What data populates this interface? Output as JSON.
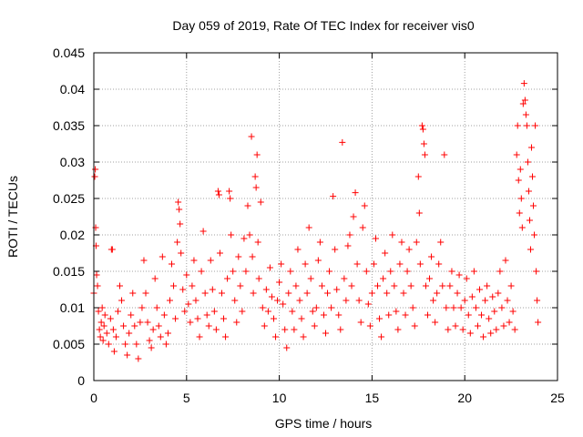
{
  "chart_data": {
    "type": "scatter",
    "title": "Day 059 of 2019, Rate Of TEC Index for receiver vis0",
    "xlabel": "GPS time / hours",
    "ylabel": "ROTI / TECUs",
    "xlim": [
      0,
      25
    ],
    "ylim": [
      0,
      0.045
    ],
    "x_ticks": [
      "0",
      "5",
      "10",
      "15",
      "20",
      "25"
    ],
    "y_ticks": [
      "0",
      "0.005",
      "0.01",
      "0.015",
      "0.02",
      "0.025",
      "0.03",
      "0.035",
      "0.04",
      "0.045"
    ],
    "x_tick_values": [
      0,
      5,
      10,
      15,
      20,
      25
    ],
    "y_tick_values": [
      0,
      0.005,
      0.01,
      0.015,
      0.02,
      0.025,
      0.03,
      0.035,
      0.04,
      0.045
    ],
    "grid": true,
    "marker": "+",
    "series": [
      {
        "name": "ROTI",
        "color": "#ff0000",
        "points": [
          [
            0.0,
            0.012
          ],
          [
            0.05,
            0.028
          ],
          [
            0.08,
            0.029
          ],
          [
            0.1,
            0.021
          ],
          [
            0.12,
            0.0185
          ],
          [
            0.15,
            0.0145
          ],
          [
            0.2,
            0.013
          ],
          [
            0.25,
            0.0095
          ],
          [
            0.3,
            0.007
          ],
          [
            0.35,
            0.006
          ],
          [
            0.4,
            0.008
          ],
          [
            0.45,
            0.01
          ],
          [
            0.5,
            0.0055
          ],
          [
            0.55,
            0.0075
          ],
          [
            0.6,
            0.009
          ],
          [
            0.7,
            0.0065
          ],
          [
            0.8,
            0.005
          ],
          [
            0.9,
            0.0085
          ],
          [
            0.95,
            0.018
          ],
          [
            1.0,
            0.018
          ],
          [
            1.05,
            0.007
          ],
          [
            1.1,
            0.004
          ],
          [
            1.2,
            0.006
          ],
          [
            1.3,
            0.0095
          ],
          [
            1.4,
            0.013
          ],
          [
            1.5,
            0.011
          ],
          [
            1.6,
            0.0075
          ],
          [
            1.7,
            0.005
          ],
          [
            1.8,
            0.0035
          ],
          [
            1.9,
            0.0065
          ],
          [
            2.0,
            0.009
          ],
          [
            2.1,
            0.012
          ],
          [
            2.2,
            0.0075
          ],
          [
            2.3,
            0.005
          ],
          [
            2.4,
            0.003
          ],
          [
            2.5,
            0.008
          ],
          [
            2.6,
            0.01
          ],
          [
            2.7,
            0.0165
          ],
          [
            2.8,
            0.012
          ],
          [
            2.9,
            0.008
          ],
          [
            3.0,
            0.0055
          ],
          [
            3.1,
            0.0045
          ],
          [
            3.2,
            0.007
          ],
          [
            3.3,
            0.014
          ],
          [
            3.4,
            0.01
          ],
          [
            3.5,
            0.0075
          ],
          [
            3.6,
            0.006
          ],
          [
            3.7,
            0.017
          ],
          [
            3.8,
            0.009
          ],
          [
            3.9,
            0.005
          ],
          [
            4.0,
            0.0065
          ],
          [
            4.1,
            0.011
          ],
          [
            4.2,
            0.016
          ],
          [
            4.3,
            0.013
          ],
          [
            4.4,
            0.0085
          ],
          [
            4.5,
            0.019
          ],
          [
            4.55,
            0.0245
          ],
          [
            4.6,
            0.0235
          ],
          [
            4.65,
            0.0215
          ],
          [
            4.7,
            0.0175
          ],
          [
            4.8,
            0.0125
          ],
          [
            4.9,
            0.0095
          ],
          [
            5.0,
            0.0145
          ],
          [
            5.1,
            0.0105
          ],
          [
            5.2,
            0.008
          ],
          [
            5.3,
            0.013
          ],
          [
            5.4,
            0.0165
          ],
          [
            5.5,
            0.011
          ],
          [
            5.6,
            0.0085
          ],
          [
            5.7,
            0.006
          ],
          [
            5.8,
            0.015
          ],
          [
            5.9,
            0.0205
          ],
          [
            6.0,
            0.012
          ],
          [
            6.1,
            0.009
          ],
          [
            6.2,
            0.0075
          ],
          [
            6.3,
            0.0165
          ],
          [
            6.4,
            0.0125
          ],
          [
            6.5,
            0.0095
          ],
          [
            6.6,
            0.007
          ],
          [
            6.7,
            0.026
          ],
          [
            6.75,
            0.0255
          ],
          [
            6.8,
            0.0175
          ],
          [
            6.9,
            0.012
          ],
          [
            7.0,
            0.0085
          ],
          [
            7.1,
            0.006
          ],
          [
            7.2,
            0.014
          ],
          [
            7.3,
            0.026
          ],
          [
            7.35,
            0.025
          ],
          [
            7.4,
            0.02
          ],
          [
            7.5,
            0.015
          ],
          [
            7.6,
            0.011
          ],
          [
            7.7,
            0.008
          ],
          [
            7.8,
            0.017
          ],
          [
            7.9,
            0.013
          ],
          [
            8.0,
            0.0095
          ],
          [
            8.1,
            0.0195
          ],
          [
            8.2,
            0.015
          ],
          [
            8.3,
            0.024
          ],
          [
            8.4,
            0.02
          ],
          [
            8.5,
            0.0335
          ],
          [
            8.55,
            0.017
          ],
          [
            8.6,
            0.012
          ],
          [
            8.7,
            0.028
          ],
          [
            8.75,
            0.0265
          ],
          [
            8.8,
            0.031
          ],
          [
            8.85,
            0.019
          ],
          [
            8.9,
            0.014
          ],
          [
            9.0,
            0.0245
          ],
          [
            9.1,
            0.01
          ],
          [
            9.2,
            0.0075
          ],
          [
            9.3,
            0.0125
          ],
          [
            9.4,
            0.0095
          ],
          [
            9.5,
            0.0155
          ],
          [
            9.6,
            0.0115
          ],
          [
            9.7,
            0.0085
          ],
          [
            9.8,
            0.006
          ],
          [
            9.9,
            0.011
          ],
          [
            10.0,
            0.0135
          ],
          [
            10.1,
            0.016
          ],
          [
            10.2,
            0.0105
          ],
          [
            10.3,
            0.007
          ],
          [
            10.4,
            0.0045
          ],
          [
            10.5,
            0.012
          ],
          [
            10.6,
            0.015
          ],
          [
            10.7,
            0.0095
          ],
          [
            10.8,
            0.007
          ],
          [
            10.9,
            0.013
          ],
          [
            11.0,
            0.018
          ],
          [
            11.1,
            0.011
          ],
          [
            11.2,
            0.0085
          ],
          [
            11.3,
            0.006
          ],
          [
            11.4,
            0.016
          ],
          [
            11.5,
            0.012
          ],
          [
            11.6,
            0.021
          ],
          [
            11.7,
            0.014
          ],
          [
            11.8,
            0.0095
          ],
          [
            11.9,
            0.0075
          ],
          [
            12.0,
            0.01
          ],
          [
            12.1,
            0.0165
          ],
          [
            12.2,
            0.019
          ],
          [
            12.3,
            0.013
          ],
          [
            12.4,
            0.009
          ],
          [
            12.5,
            0.0065
          ],
          [
            12.6,
            0.012
          ],
          [
            12.7,
            0.015
          ],
          [
            12.8,
            0.01
          ],
          [
            12.9,
            0.0253
          ],
          [
            13.0,
            0.018
          ],
          [
            13.1,
            0.0125
          ],
          [
            13.2,
            0.009
          ],
          [
            13.3,
            0.007
          ],
          [
            13.4,
            0.0327
          ],
          [
            13.5,
            0.014
          ],
          [
            13.6,
            0.011
          ],
          [
            13.7,
            0.0185
          ],
          [
            13.8,
            0.02
          ],
          [
            13.9,
            0.013
          ],
          [
            14.0,
            0.0225
          ],
          [
            14.1,
            0.0258
          ],
          [
            14.2,
            0.016
          ],
          [
            14.3,
            0.011
          ],
          [
            14.4,
            0.008
          ],
          [
            14.5,
            0.021
          ],
          [
            14.6,
            0.024
          ],
          [
            14.7,
            0.015
          ],
          [
            14.8,
            0.0105
          ],
          [
            14.9,
            0.0075
          ],
          [
            15.0,
            0.012
          ],
          [
            15.1,
            0.016
          ],
          [
            15.2,
            0.0195
          ],
          [
            15.3,
            0.013
          ],
          [
            15.4,
            0.0085
          ],
          [
            15.5,
            0.006
          ],
          [
            15.6,
            0.014
          ],
          [
            15.7,
            0.0175
          ],
          [
            15.8,
            0.012
          ],
          [
            15.9,
            0.009
          ],
          [
            16.0,
            0.015
          ],
          [
            16.1,
            0.02
          ],
          [
            16.2,
            0.013
          ],
          [
            16.3,
            0.0095
          ],
          [
            16.4,
            0.007
          ],
          [
            16.5,
            0.016
          ],
          [
            16.6,
            0.019
          ],
          [
            16.7,
            0.012
          ],
          [
            16.8,
            0.009
          ],
          [
            16.9,
            0.015
          ],
          [
            17.0,
            0.018
          ],
          [
            17.1,
            0.013
          ],
          [
            17.2,
            0.01
          ],
          [
            17.3,
            0.0075
          ],
          [
            17.4,
            0.019
          ],
          [
            17.5,
            0.028
          ],
          [
            17.55,
            0.023
          ],
          [
            17.6,
            0.016
          ],
          [
            17.7,
            0.035
          ],
          [
            17.75,
            0.0345
          ],
          [
            17.8,
            0.0325
          ],
          [
            17.85,
            0.031
          ],
          [
            17.9,
            0.013
          ],
          [
            18.0,
            0.009
          ],
          [
            18.1,
            0.014
          ],
          [
            18.2,
            0.017
          ],
          [
            18.3,
            0.011
          ],
          [
            18.4,
            0.008
          ],
          [
            18.5,
            0.012
          ],
          [
            18.6,
            0.016
          ],
          [
            18.7,
            0.019
          ],
          [
            18.8,
            0.013
          ],
          [
            18.9,
            0.031
          ],
          [
            19.0,
            0.01
          ],
          [
            19.1,
            0.007
          ],
          [
            19.2,
            0.013
          ],
          [
            19.3,
            0.015
          ],
          [
            19.4,
            0.01
          ],
          [
            19.5,
            0.0075
          ],
          [
            19.6,
            0.012
          ],
          [
            19.7,
            0.0145
          ],
          [
            19.8,
            0.01
          ],
          [
            19.9,
            0.007
          ],
          [
            20.0,
            0.011
          ],
          [
            20.1,
            0.014
          ],
          [
            20.2,
            0.009
          ],
          [
            20.3,
            0.0065
          ],
          [
            20.4,
            0.0115
          ],
          [
            20.5,
            0.015
          ],
          [
            20.6,
            0.01
          ],
          [
            20.7,
            0.0075
          ],
          [
            20.8,
            0.0125
          ],
          [
            20.9,
            0.009
          ],
          [
            21.0,
            0.006
          ],
          [
            21.1,
            0.011
          ],
          [
            21.2,
            0.013
          ],
          [
            21.3,
            0.0085
          ],
          [
            21.4,
            0.0065
          ],
          [
            21.5,
            0.0115
          ],
          [
            21.6,
            0.0095
          ],
          [
            21.7,
            0.007
          ],
          [
            21.8,
            0.012
          ],
          [
            21.9,
            0.015
          ],
          [
            22.0,
            0.01
          ],
          [
            22.1,
            0.0075
          ],
          [
            22.2,
            0.0165
          ],
          [
            22.3,
            0.011
          ],
          [
            22.4,
            0.008
          ],
          [
            22.5,
            0.013
          ],
          [
            22.6,
            0.0095
          ],
          [
            22.7,
            0.007
          ],
          [
            22.8,
            0.031
          ],
          [
            22.85,
            0.035
          ],
          [
            22.9,
            0.0275
          ],
          [
            22.95,
            0.023
          ],
          [
            23.0,
            0.029
          ],
          [
            23.05,
            0.025
          ],
          [
            23.1,
            0.021
          ],
          [
            23.15,
            0.038
          ],
          [
            23.2,
            0.0408
          ],
          [
            23.25,
            0.0385
          ],
          [
            23.3,
            0.0365
          ],
          [
            23.35,
            0.035
          ],
          [
            23.4,
            0.03
          ],
          [
            23.45,
            0.026
          ],
          [
            23.5,
            0.022
          ],
          [
            23.55,
            0.018
          ],
          [
            23.6,
            0.032
          ],
          [
            23.65,
            0.028
          ],
          [
            23.7,
            0.024
          ],
          [
            23.75,
            0.02
          ],
          [
            23.8,
            0.035
          ],
          [
            23.85,
            0.015
          ],
          [
            23.9,
            0.011
          ],
          [
            23.95,
            0.008
          ]
        ]
      }
    ]
  }
}
